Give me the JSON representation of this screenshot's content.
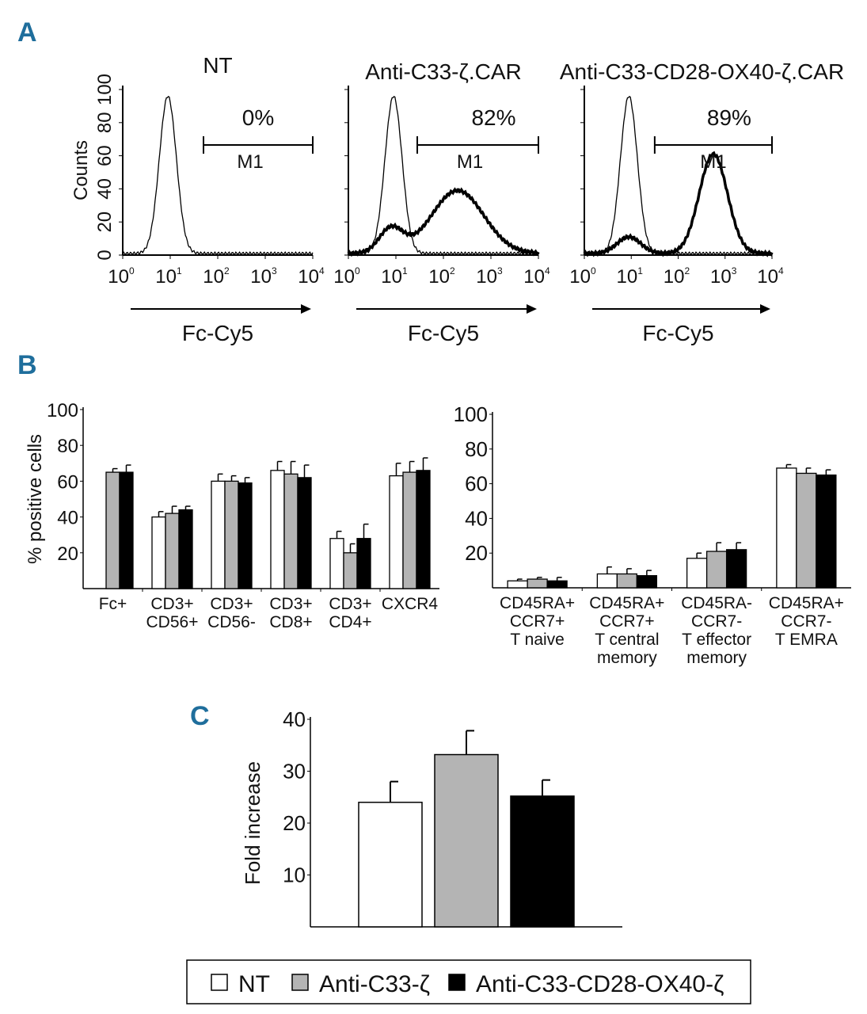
{
  "panels": {
    "a": "A",
    "b": "B",
    "c": "C"
  },
  "chart_data": [
    {
      "type": "histogram",
      "panel": "A",
      "xlabel": "Fc-Cy5",
      "ylabel": "Counts",
      "xscale": "log",
      "xticks": [
        "10^0",
        "10^1",
        "10^2",
        "10^3",
        "10^4"
      ],
      "yticks": [
        "0",
        "20",
        "40",
        "60",
        "80",
        "100"
      ],
      "ylim": [
        0,
        100
      ],
      "plots": [
        {
          "title": "NT",
          "percent": "0%",
          "gate": "M1",
          "gate_range_log": [
            1.7,
            4.0
          ],
          "curves": [
            {
              "style": "thin",
              "peak_log": 0.95,
              "width_log": 0.18,
              "height": 95
            }
          ]
        },
        {
          "title": "Anti-C33-ζ.CAR",
          "percent": "82%",
          "gate": "M1",
          "gate_range_log": [
            1.45,
            4.0
          ],
          "curves": [
            {
              "style": "thin",
              "peak_log": 0.95,
              "width_log": 0.18,
              "height": 95
            },
            {
              "style": "thick",
              "peak_log": 2.3,
              "width_log": 0.55,
              "height": 38,
              "minor_peak_log": 0.9,
              "minor_height": 15
            }
          ]
        },
        {
          "title": "Anti-C33-CD28-OX40-ζ.CAR",
          "percent": "89%",
          "gate": "M1",
          "gate_range_log": [
            1.5,
            4.0
          ],
          "curves": [
            {
              "style": "thin",
              "peak_log": 0.95,
              "width_log": 0.18,
              "height": 95
            },
            {
              "style": "thick",
              "peak_log": 2.75,
              "width_log": 0.3,
              "height": 60,
              "minor_peak_log": 0.95,
              "minor_height": 10
            }
          ]
        }
      ]
    },
    {
      "type": "bar",
      "panel": "B-left",
      "ylabel": "% positive cells",
      "ylim": [
        0,
        100
      ],
      "yticks": [
        "20",
        "40",
        "60",
        "80",
        "100"
      ],
      "categories": [
        [
          "Fc+"
        ],
        [
          "CD3+",
          "CD56+"
        ],
        [
          "CD3+",
          "CD56-"
        ],
        [
          "CD3+",
          "CD8+"
        ],
        [
          "CD3+",
          "CD4+"
        ],
        [
          "CXCR4"
        ]
      ],
      "series": [
        {
          "name": "NT",
          "values": [
            0,
            40,
            60,
            66,
            28,
            63
          ],
          "errors": [
            0,
            3,
            4,
            5,
            4,
            7
          ]
        },
        {
          "name": "Anti-C33-ζ",
          "values": [
            65,
            42,
            60,
            64,
            20,
            65
          ],
          "errors": [
            2,
            4,
            3,
            7,
            5,
            6
          ]
        },
        {
          "name": "Anti-C33-CD28-OX40-ζ",
          "values": [
            65,
            44,
            59,
            62,
            28,
            66
          ],
          "errors": [
            4,
            2,
            3,
            7,
            8,
            7
          ]
        }
      ]
    },
    {
      "type": "bar",
      "panel": "B-right",
      "ylim": [
        0,
        100
      ],
      "yticks": [
        "20",
        "40",
        "60",
        "80",
        "100"
      ],
      "categories": [
        [
          "CD45RA+",
          "CCR7+",
          "T naive"
        ],
        [
          "CD45RA+",
          "CCR7+",
          "T central",
          "memory"
        ],
        [
          "CD45RA-",
          "CCR7-",
          "T effector",
          "memory"
        ],
        [
          "CD45RA+",
          "CCR7-",
          "T EMRA"
        ]
      ],
      "series": [
        {
          "name": "NT",
          "values": [
            4,
            8,
            17,
            69
          ],
          "errors": [
            1,
            4,
            3,
            2
          ]
        },
        {
          "name": "Anti-C33-ζ",
          "values": [
            5,
            8,
            21,
            66
          ],
          "errors": [
            1,
            3,
            5,
            3
          ]
        },
        {
          "name": "Anti-C33-CD28-OX40-ζ",
          "values": [
            4,
            7,
            22,
            65
          ],
          "errors": [
            2,
            3,
            4,
            3
          ]
        }
      ]
    },
    {
      "type": "bar",
      "panel": "C",
      "ylabel": "Fold increase",
      "ylim": [
        0,
        40
      ],
      "yticks": [
        "10",
        "20",
        "30",
        "40"
      ],
      "categories": [
        "NT",
        "Anti-C33-ζ",
        "Anti-C33-CD28-OX40-ζ"
      ],
      "values": [
        24,
        33.2,
        25.2
      ],
      "errors": [
        4,
        4.6,
        3.1
      ]
    }
  ],
  "legend": [
    {
      "label": "NT",
      "color": "#ffffff"
    },
    {
      "label": "Anti-C33-ζ",
      "color": "#b4b4b4"
    },
    {
      "label": "Anti-C33-CD28-OX40-ζ",
      "color": "#000000"
    }
  ]
}
